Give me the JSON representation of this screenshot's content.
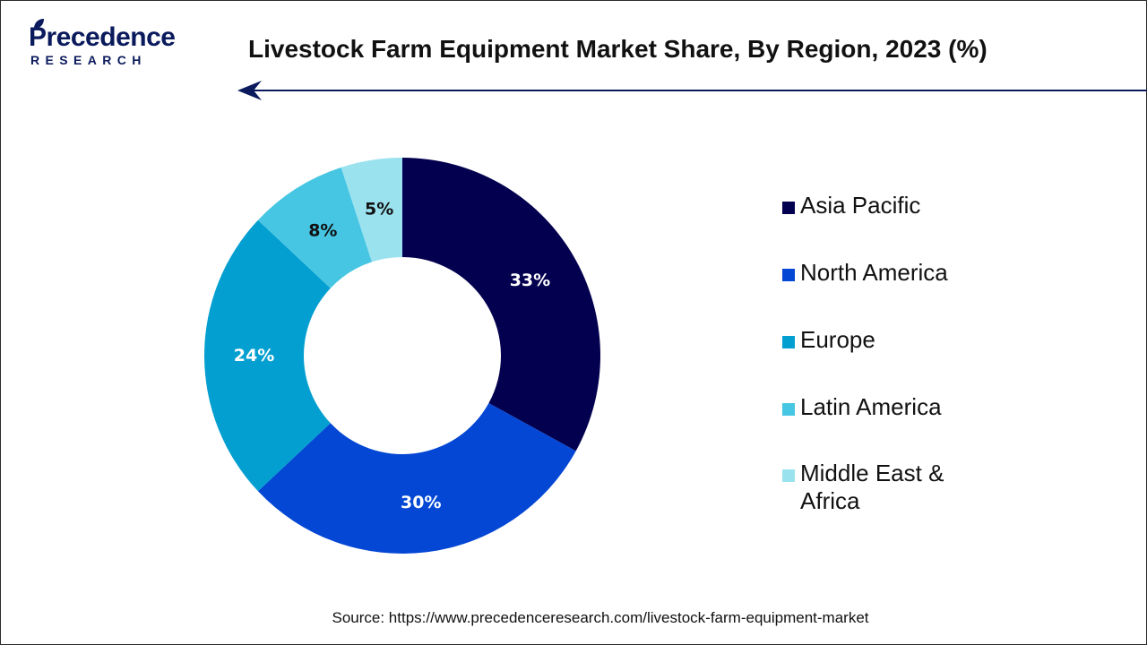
{
  "logo": {
    "word": "Precedence",
    "sub": "RESEARCH"
  },
  "title": "Livestock Farm Equipment Market Share, By Region, 2023 (%)",
  "source": "Source: https://www.precedenceresearch.com/livestock-farm-equipment-market",
  "colors": {
    "accent": "#0a1a5c",
    "Asia Pacific": "#03004f",
    "North America": "#0347d4",
    "Europe": "#039fd1",
    "Latin America": "#46c6e3",
    "Middle East & Africa": "#9be2ef"
  },
  "chart_data": {
    "type": "pie",
    "variant": "donut",
    "title": "Livestock Farm Equipment Market Share, By Region, 2023 (%)",
    "categories": [
      "Asia Pacific",
      "North America",
      "Europe",
      "Latin America",
      "Middle East & Africa"
    ],
    "values": [
      33,
      30,
      24,
      8,
      5
    ],
    "labels": [
      "33%",
      "30%",
      "24%",
      "8%",
      "5%"
    ],
    "unit": "%",
    "legend": "right"
  },
  "legend": [
    {
      "label": "Asia Pacific",
      "color": "#03004f"
    },
    {
      "label": "North America",
      "color": "#0347d4"
    },
    {
      "label": "Europe",
      "color": "#039fd1"
    },
    {
      "label": "Latin America",
      "color": "#46c6e3"
    },
    {
      "label": "Middle East & Africa",
      "color": "#9be2ef"
    }
  ]
}
